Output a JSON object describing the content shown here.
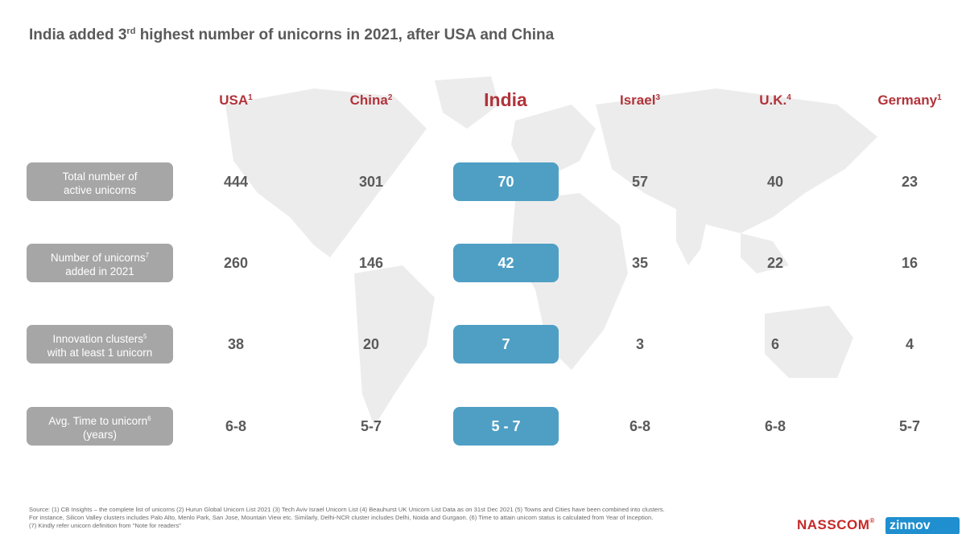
{
  "title": {
    "pre": "India added 3",
    "sup": "rd",
    "post": " highest number of unicorns in 2021, after USA and China"
  },
  "columns": [
    {
      "name": "USA",
      "note": "1"
    },
    {
      "name": "China",
      "note": "2"
    },
    {
      "name": "India",
      "note": ""
    },
    {
      "name": "Israel",
      "note": "3"
    },
    {
      "name": "U.K.",
      "note": "4"
    },
    {
      "name": "Germany",
      "note": "1"
    }
  ],
  "rows": [
    {
      "label_line1": "Total number of",
      "label_note": "",
      "label_line2": "active unicorns",
      "values": [
        "444",
        "301",
        "70",
        "57",
        "40",
        "23"
      ]
    },
    {
      "label_line1": "Number of unicorns",
      "label_note": "7",
      "label_line2": "added in 2021",
      "values": [
        "260",
        "146",
        "42",
        "35",
        "22",
        "16"
      ]
    },
    {
      "label_line1": "Innovation clusters",
      "label_note": "5",
      "label_line2": "with at least 1 unicorn",
      "values": [
        "38",
        "20",
        "7",
        "3",
        "6",
        "4"
      ]
    },
    {
      "label_line1": "Avg. Time to unicorn",
      "label_note": "6",
      "label_line2": "(years)",
      "values": [
        "6-8",
        "5-7",
        "5 - 7",
        "6-8",
        "6-8",
        "5-7"
      ]
    }
  ],
  "source": {
    "line1": "Source:  (1) CB Insights – the complete list of unicorns (2) Hurun Global Unicorn List 2021 (3) Tech Aviv Israel Unicorn List (4) Beauhurst UK Unicorn List Data as on 31st Dec 2021 (5) Towns and Cities have been combined into clusters.",
    "line2": "For instance, Silicon Valley clusters includes Palo Alto, Menlo Park, San Jose, Mountain View etc. Similarly, Delhi-NCR cluster includes Delhi, Noida and Gurgaon.  (6)  Time to attain unicorn status is calculated from Year of Inception.",
    "line3": "(7) Kindly refer unicorn definition from \"Note for readers\""
  },
  "logos": {
    "nasscom": "NASSCOM",
    "nasscom_mark": "®",
    "zinnov": "zinnov"
  },
  "colors": {
    "accent_red": "#b2333a",
    "india_blue": "#4f9fc5",
    "label_gray": "#a6a6a6"
  }
}
